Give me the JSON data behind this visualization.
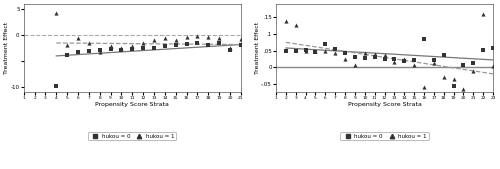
{
  "left": {
    "xlim": [
      1,
      21
    ],
    "ylim": [
      -11,
      6
    ],
    "yticks": [
      -10,
      -5,
      0,
      5
    ],
    "ytick_labels": [
      "-10",
      "",
      "0",
      "5"
    ],
    "ylabel": "Treatment Effect",
    "xlabel": "Propensity Score Strata",
    "dashed_hline_y": 0,
    "hukou0_x": [
      4,
      5,
      6,
      7,
      8,
      9,
      10,
      11,
      12,
      13,
      14,
      15,
      16,
      17,
      18,
      19,
      20,
      21
    ],
    "hukou0_y": [
      -9.8,
      -3.8,
      -3.3,
      -3.0,
      -2.8,
      -2.7,
      -2.9,
      -2.6,
      -2.5,
      -2.4,
      -2.0,
      -1.9,
      -1.7,
      -1.6,
      -1.8,
      -1.5,
      -2.8,
      -1.9
    ],
    "hukou1_x": [
      4,
      5,
      6,
      7,
      8,
      9,
      10,
      11,
      12,
      13,
      14,
      15,
      16,
      17,
      18,
      19,
      20,
      21
    ],
    "hukou1_y": [
      4.2,
      -1.8,
      -0.5,
      -1.5,
      -3.2,
      -2.0,
      -2.5,
      -2.0,
      -1.5,
      -1.0,
      -0.5,
      -1.0,
      -0.3,
      -0.2,
      -0.3,
      -0.5,
      -2.5,
      -0.8
    ],
    "trend0_x": [
      4,
      21
    ],
    "trend0_y": [
      -4.0,
      -1.8
    ],
    "trend1_x": [
      4,
      21
    ],
    "trend1_y": [
      -1.5,
      -1.8
    ]
  },
  "right": {
    "xlim": [
      1,
      23
    ],
    "ylim": [
      -0.075,
      0.19
    ],
    "yticks": [
      -0.05,
      0,
      0.05,
      0.1,
      0.15
    ],
    "ytick_labels": [
      "-.05",
      "0",
      ".05",
      ".1",
      ".15"
    ],
    "ylabel": "Treatment Effect",
    "xlabel": "Propensity Score Strata",
    "solid_hline_y": 0,
    "hukou0_x": [
      2,
      3,
      4,
      5,
      6,
      7,
      8,
      9,
      10,
      11,
      12,
      13,
      14,
      15,
      16,
      17,
      18,
      19,
      20,
      21,
      22,
      23
    ],
    "hukou0_y": [
      0.05,
      0.048,
      0.052,
      0.045,
      0.07,
      0.055,
      0.042,
      0.032,
      0.028,
      0.03,
      0.025,
      0.025,
      0.018,
      0.022,
      0.085,
      0.022,
      0.038,
      -0.058,
      0.008,
      0.012,
      0.052,
      0.058
    ],
    "hukou1_x": [
      2,
      3,
      4,
      5,
      6,
      7,
      8,
      9,
      10,
      11,
      12,
      13,
      14,
      15,
      16,
      17,
      18,
      19,
      20,
      21,
      22,
      23
    ],
    "hukou1_y": [
      0.14,
      0.128,
      0.05,
      0.05,
      0.048,
      0.042,
      0.025,
      0.008,
      0.042,
      0.04,
      0.038,
      0.015,
      0.025,
      0.008,
      -0.06,
      0.012,
      -0.028,
      -0.035,
      -0.065,
      -0.01,
      0.16,
      0.005
    ],
    "trend0_x": [
      2,
      23
    ],
    "trend0_y": [
      0.058,
      0.022
    ],
    "trend1_x": [
      2,
      23
    ],
    "trend1_y": [
      0.075,
      -0.02
    ]
  },
  "legend_labels": [
    "hukou = 0",
    "hukou = 1"
  ],
  "marker0": "s",
  "marker1": "^",
  "color_dark": "#333333",
  "color_trend_solid": "#777777",
  "color_trend_dashed": "#999999",
  "bg_color": "#ffffff"
}
